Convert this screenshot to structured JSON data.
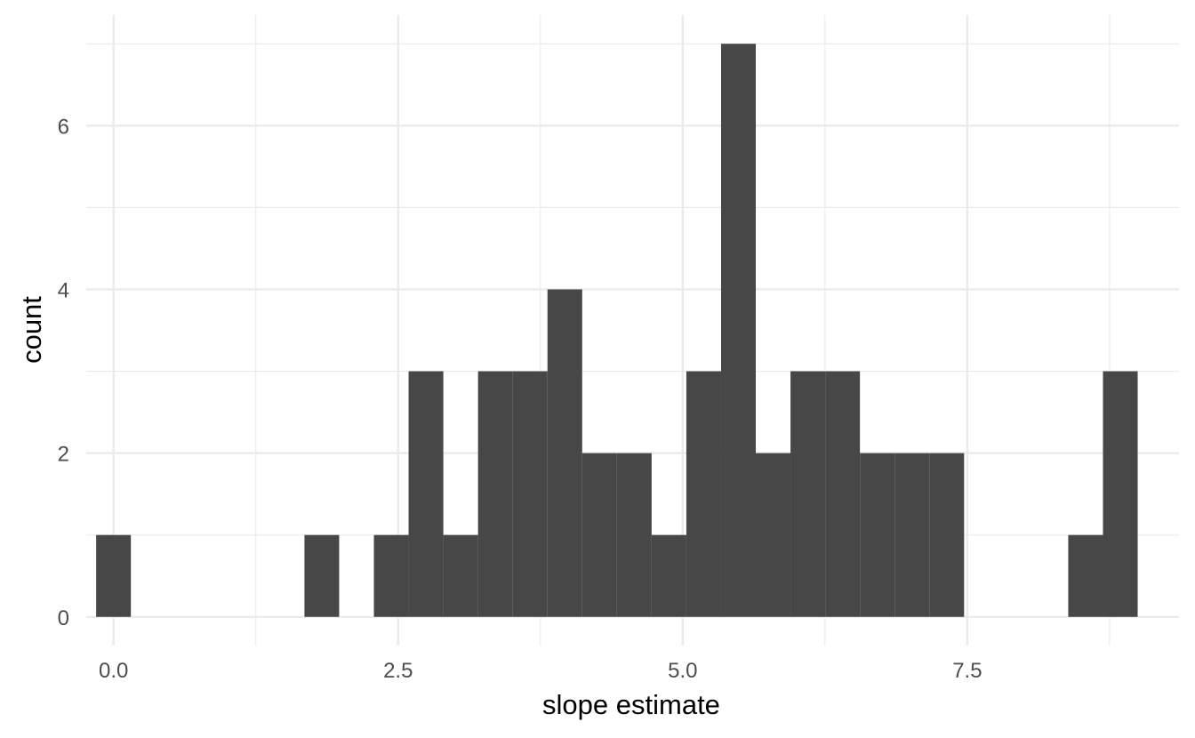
{
  "chart_data": {
    "type": "bar",
    "title": "",
    "xlabel": "slope estimate",
    "ylabel": "count",
    "xlim": [
      -0.24,
      9.36
    ],
    "ylim": [
      -0.35,
      7.35
    ],
    "x_major_ticks": [
      0.0,
      2.5,
      5.0,
      7.5
    ],
    "x_major_labels": [
      "0.0",
      "2.5",
      "5.0",
      "7.5"
    ],
    "x_minor_ticks": [
      1.25,
      3.75,
      6.25,
      8.75
    ],
    "y_major_ticks": [
      0,
      2,
      4,
      6
    ],
    "y_major_labels": [
      "0",
      "2",
      "4",
      "6"
    ],
    "y_minor_ticks": [
      1,
      3,
      5,
      7
    ],
    "bin_width": 0.305,
    "bins": [
      {
        "x0": -0.153,
        "x1": 0.152,
        "count": 1
      },
      {
        "x0": 1.677,
        "x1": 1.982,
        "count": 1
      },
      {
        "x0": 2.287,
        "x1": 2.592,
        "count": 1
      },
      {
        "x0": 2.592,
        "x1": 2.897,
        "count": 3
      },
      {
        "x0": 2.897,
        "x1": 3.202,
        "count": 1
      },
      {
        "x0": 3.202,
        "x1": 3.507,
        "count": 3
      },
      {
        "x0": 3.507,
        "x1": 3.812,
        "count": 3
      },
      {
        "x0": 3.812,
        "x1": 4.117,
        "count": 4
      },
      {
        "x0": 4.117,
        "x1": 4.422,
        "count": 2
      },
      {
        "x0": 4.422,
        "x1": 4.727,
        "count": 2
      },
      {
        "x0": 4.727,
        "x1": 5.032,
        "count": 1
      },
      {
        "x0": 5.032,
        "x1": 5.337,
        "count": 3
      },
      {
        "x0": 5.337,
        "x1": 5.642,
        "count": 7
      },
      {
        "x0": 5.642,
        "x1": 5.947,
        "count": 2
      },
      {
        "x0": 5.947,
        "x1": 6.252,
        "count": 3
      },
      {
        "x0": 6.252,
        "x1": 6.557,
        "count": 3
      },
      {
        "x0": 6.557,
        "x1": 6.862,
        "count": 2
      },
      {
        "x0": 6.862,
        "x1": 7.167,
        "count": 2
      },
      {
        "x0": 7.167,
        "x1": 7.472,
        "count": 2
      },
      {
        "x0": 8.387,
        "x1": 8.692,
        "count": 1
      },
      {
        "x0": 8.692,
        "x1": 8.997,
        "count": 3
      }
    ],
    "colors": {
      "bar": "#474747",
      "grid": "#ebebeb",
      "tick_text": "#4d4d4d",
      "axis_title": "#000000",
      "background": "#ffffff"
    },
    "grid": true,
    "legend": "none"
  }
}
